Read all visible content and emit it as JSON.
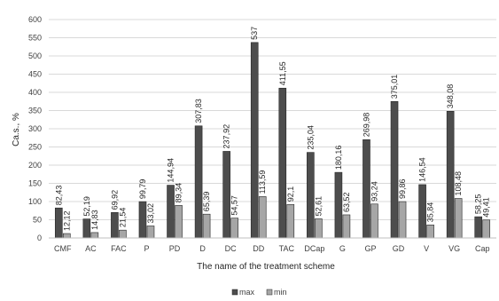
{
  "chart_data": {
    "type": "bar",
    "title": "",
    "xlabel": "The name of the treatment scheme",
    "ylabel": "Ca.s., %",
    "ylim": [
      0,
      600
    ],
    "yticks": [
      "0",
      "50",
      "100",
      "150",
      "200",
      "250",
      "300",
      "350",
      "400",
      "450",
      "500",
      "550",
      "600"
    ],
    "grid": true,
    "legend": "bottom",
    "categories": [
      "CMF",
      "AC",
      "FAC",
      "P",
      "PD",
      "D",
      "DC",
      "DD",
      "TAC",
      "DCap",
      "G",
      "GP",
      "GD",
      "V",
      "VG",
      "Cap"
    ],
    "series": [
      {
        "name": "max",
        "color": "#4d4d4d",
        "values": [
          82.43,
          52.19,
          69.92,
          99.79,
          144.94,
          307.83,
          237.92,
          537,
          411.55,
          235.04,
          180.16,
          269.98,
          375.01,
          146.54,
          348.08,
          58.25
        ],
        "labels": [
          "82,43",
          "52,19",
          "69,92",
          "99,79",
          "144,94",
          "307,83",
          "237,92",
          "537",
          "411,55",
          "235,04",
          "180,16",
          "269,98",
          "375,01",
          "146,54",
          "348,08",
          "58,25"
        ]
      },
      {
        "name": "min",
        "color": "#a6a6a6",
        "values": [
          12.12,
          14.83,
          21.54,
          33.02,
          89.34,
          65.39,
          54.57,
          113.59,
          92.1,
          52.61,
          63.52,
          93.24,
          99.86,
          35.84,
          108.48,
          49.41
        ],
        "labels": [
          "12,12",
          "14,83",
          "21,54",
          "33,02",
          "89,34",
          "65,39",
          "54,57",
          "113,59",
          "92,1",
          "52,61",
          "63,52",
          "93,24",
          "99,86",
          "35,84",
          "108,48",
          "49,41"
        ]
      }
    ]
  }
}
